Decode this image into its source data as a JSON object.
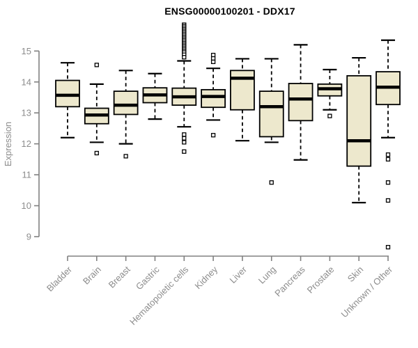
{
  "chart_data": {
    "type": "boxplot",
    "title": "ENSG00000100201 - DDX17",
    "ylabel": "Expression",
    "xlabel": "",
    "ylim": [
      8.6,
      15.9
    ],
    "yticks": [
      9,
      10,
      11,
      12,
      13,
      14,
      15
    ],
    "grid": false,
    "legend": "none",
    "colors": {
      "box_fill": "#EDE8CD",
      "box_stroke": "#000000",
      "axis_line": "#808080",
      "tick_label": "#8c8c8c",
      "title_text": "#000000"
    },
    "categories": [
      "Bladder",
      "Brain",
      "Breast",
      "Gastric",
      "Hematopoietic cells",
      "Kidney",
      "Liver",
      "Lung",
      "Pancreas",
      "Prostate",
      "Skin",
      "Unknown / Other"
    ],
    "series": [
      {
        "category": "Bladder",
        "low": 12.2,
        "q1": 13.2,
        "median": 13.57,
        "q3": 14.05,
        "high": 14.62,
        "outliers": []
      },
      {
        "category": "Brain",
        "low": 12.05,
        "q1": 12.65,
        "median": 12.93,
        "q3": 13.15,
        "high": 13.93,
        "outliers": [
          14.55,
          11.7
        ]
      },
      {
        "category": "Breast",
        "low": 12.0,
        "q1": 12.95,
        "median": 13.25,
        "q3": 13.7,
        "high": 14.37,
        "outliers": [
          11.6
        ]
      },
      {
        "category": "Gastric",
        "low": 12.8,
        "q1": 13.33,
        "median": 13.58,
        "q3": 13.81,
        "high": 14.27,
        "outliers": []
      },
      {
        "category": "Hematopoietic cells",
        "low": 12.55,
        "q1": 13.25,
        "median": 13.52,
        "q3": 13.8,
        "high": 14.68,
        "outliers": [
          15.85,
          15.8,
          15.75,
          15.7,
          15.65,
          15.6,
          15.55,
          15.5,
          15.45,
          15.4,
          15.35,
          15.3,
          15.25,
          15.2,
          15.15,
          15.1,
          15.05,
          15.0,
          14.95,
          14.88,
          14.8,
          12.3,
          12.18,
          12.05,
          11.75
        ]
      },
      {
        "category": "Kidney",
        "low": 12.77,
        "q1": 13.18,
        "median": 13.53,
        "q3": 13.75,
        "high": 14.44,
        "outliers": [
          14.87,
          14.76,
          14.65,
          12.28
        ]
      },
      {
        "category": "Liver",
        "low": 12.1,
        "q1": 13.1,
        "median": 14.12,
        "q3": 14.37,
        "high": 14.75,
        "outliers": []
      },
      {
        "category": "Lung",
        "low": 12.05,
        "q1": 12.23,
        "median": 13.2,
        "q3": 13.7,
        "high": 14.75,
        "outliers": [
          10.75
        ]
      },
      {
        "category": "Pancreas",
        "low": 11.48,
        "q1": 12.75,
        "median": 13.45,
        "q3": 13.95,
        "high": 15.2,
        "outliers": []
      },
      {
        "category": "Prostate",
        "low": 13.1,
        "q1": 13.55,
        "median": 13.78,
        "q3": 13.93,
        "high": 14.4,
        "outliers": [
          12.9
        ]
      },
      {
        "category": "Skin",
        "low": 10.1,
        "q1": 11.28,
        "median": 12.1,
        "q3": 14.2,
        "high": 14.78,
        "outliers": []
      },
      {
        "category": "Unknown / Other",
        "low": 12.2,
        "q1": 13.27,
        "median": 13.83,
        "q3": 14.33,
        "high": 15.35,
        "outliers": [
          11.65,
          11.5,
          10.75,
          10.17,
          8.66
        ]
      }
    ]
  }
}
